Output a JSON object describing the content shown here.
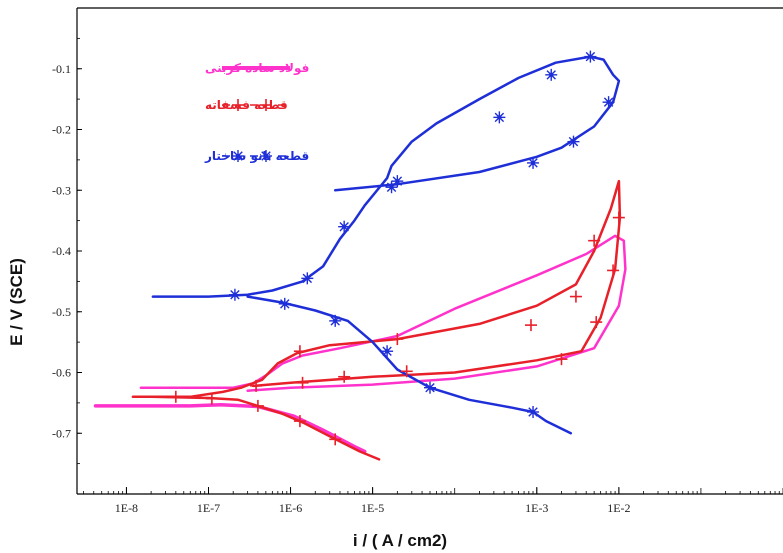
{
  "chart_data": {
    "type": "line",
    "title": "",
    "xlabel": "i / ( A / cm2)",
    "ylabel": "E / V (SCE)",
    "xscale": "log",
    "xlim": [
      2.5e-09,
      1.0
    ],
    "ylim": [
      -0.8,
      0.0
    ],
    "x_ticks": [
      {
        "value": 1e-08,
        "label": "1E-8"
      },
      {
        "value": 1e-07,
        "label": "1E-7"
      },
      {
        "value": 1e-06,
        "label": "1E-6"
      },
      {
        "value": 1e-05,
        "label": "1E-5"
      },
      {
        "value": 0.001,
        "label": "1E-3"
      },
      {
        "value": 0.01,
        "label": "1E-2"
      }
    ],
    "y_ticks": [
      -0.1,
      -0.2,
      -0.3,
      -0.4,
      -0.5,
      -0.6,
      -0.7
    ],
    "y_tick_labels": [
      "-0.1",
      "-0.2",
      "-0.3",
      "-0.4",
      "-0.5",
      "-0.6",
      "-0.7"
    ],
    "grid": false,
    "legend_position": "top-left",
    "series": [
      {
        "name": "فولاد ساده کربنی",
        "color": "#ff33cc",
        "marker": "none",
        "dash": "solid",
        "width": 3.5,
        "points": [
          [
            4.2e-09,
            -0.655
          ],
          [
            1.5e-08,
            -0.655
          ],
          [
            6e-08,
            -0.655
          ],
          [
            1.4e-07,
            -0.653
          ],
          [
            4e-07,
            -0.656
          ],
          [
            1.1e-06,
            -0.672
          ],
          [
            2.5e-06,
            -0.695
          ],
          [
            6e-06,
            -0.722
          ],
          [
            8e-06,
            -0.73
          ]
        ]
      },
      {
        "name": "فولاد ساده کربنی",
        "color": "#ff33cc",
        "marker": "none",
        "dash": "solid",
        "width": 2.5,
        "points": [
          [
            1.5e-08,
            -0.625
          ],
          [
            8e-08,
            -0.625
          ],
          [
            2e-07,
            -0.625
          ],
          [
            3.5e-07,
            -0.618
          ],
          [
            5e-07,
            -0.605
          ],
          [
            8e-07,
            -0.585
          ],
          [
            1.4e-06,
            -0.572
          ],
          [
            4e-06,
            -0.56
          ],
          [
            2e-05,
            -0.54
          ],
          [
            0.0001,
            -0.495
          ],
          [
            0.001,
            -0.44
          ],
          [
            0.004,
            -0.405
          ],
          [
            0.009,
            -0.375
          ],
          [
            0.0115,
            -0.383
          ],
          [
            0.012,
            -0.43
          ],
          [
            0.01,
            -0.49
          ],
          [
            0.005,
            -0.56
          ],
          [
            0.001,
            -0.59
          ],
          [
            0.0001,
            -0.61
          ],
          [
            1e-05,
            -0.62
          ],
          [
            1e-06,
            -0.625
          ],
          [
            3e-07,
            -0.63
          ]
        ]
      },
      {
        "name": "قطعه فسفاته",
        "color": "#e8202a",
        "marker": "plus",
        "dash": "solid",
        "width": 2.5,
        "points": [
          [
            2e-08,
            -0.64
          ],
          [
            1e-07,
            -0.642
          ],
          [
            2.3e-07,
            -0.645
          ],
          [
            4e-07,
            -0.655
          ],
          [
            8e-07,
            -0.668
          ],
          [
            1.5e-06,
            -0.684
          ],
          [
            3e-06,
            -0.705
          ],
          [
            7e-06,
            -0.73
          ],
          [
            1.2e-05,
            -0.743
          ]
        ]
      },
      {
        "name": "قطعه فسفاته",
        "color": "#e8202a",
        "marker": "plus",
        "dash": "solid",
        "width": 2.5,
        "points": [
          [
            1.2e-08,
            -0.64
          ],
          [
            6e-08,
            -0.64
          ],
          [
            1.5e-07,
            -0.632
          ],
          [
            2.5e-07,
            -0.625
          ],
          [
            4.5e-07,
            -0.612
          ],
          [
            7e-07,
            -0.585
          ],
          [
            1.2e-06,
            -0.568
          ],
          [
            3e-06,
            -0.555
          ],
          [
            2e-05,
            -0.545
          ],
          [
            0.0002,
            -0.52
          ],
          [
            0.001,
            -0.49
          ],
          [
            0.003,
            -0.455
          ],
          [
            0.005,
            -0.4
          ],
          [
            0.008,
            -0.33
          ],
          [
            0.01,
            -0.285
          ],
          [
            0.0103,
            -0.345
          ],
          [
            0.009,
            -0.43
          ],
          [
            0.006,
            -0.51
          ],
          [
            0.0035,
            -0.565
          ],
          [
            0.001,
            -0.58
          ],
          [
            0.0001,
            -0.6
          ],
          [
            1e-05,
            -0.607
          ],
          [
            1e-06,
            -0.617
          ],
          [
            3.5e-07,
            -0.622
          ]
        ]
      },
      {
        "name": "قطعه نانو ساختار",
        "color": "#1f2fd8",
        "marker": "star",
        "dash": "solid",
        "width": 2.5,
        "points": [
          [
            2.1e-08,
            -0.475
          ],
          [
            1e-07,
            -0.475
          ],
          [
            3e-07,
            -0.472
          ],
          [
            6e-07,
            -0.465
          ],
          [
            1.4e-06,
            -0.45
          ],
          [
            2.5e-06,
            -0.425
          ],
          [
            4e-06,
            -0.38
          ],
          [
            6e-06,
            -0.35
          ],
          [
            8e-06,
            -0.325
          ],
          [
            1.5e-05,
            -0.28
          ],
          [
            1.7e-05,
            -0.26
          ],
          [
            3e-05,
            -0.22
          ],
          [
            6e-05,
            -0.19
          ],
          [
            0.0002,
            -0.15
          ],
          [
            0.0006,
            -0.115
          ],
          [
            0.0017,
            -0.09
          ],
          [
            0.0045,
            -0.08
          ],
          [
            0.0065,
            -0.085
          ],
          [
            0.0085,
            -0.11
          ],
          [
            0.01,
            -0.12
          ],
          [
            0.0085,
            -0.155
          ],
          [
            0.005,
            -0.195
          ],
          [
            0.002,
            -0.23
          ],
          [
            0.001,
            -0.245
          ],
          [
            0.0002,
            -0.27
          ],
          [
            2e-05,
            -0.29
          ],
          [
            3.5e-06,
            -0.3
          ]
        ]
      },
      {
        "name": "قطعه نانو ساختار",
        "color": "#1f2fd8",
        "marker": "star",
        "dash": "solid",
        "width": 2.5,
        "points": [
          [
            3e-07,
            -0.475
          ],
          [
            8e-07,
            -0.485
          ],
          [
            2e-06,
            -0.498
          ],
          [
            5e-06,
            -0.515
          ],
          [
            1e-05,
            -0.55
          ],
          [
            2e-05,
            -0.595
          ],
          [
            5e-05,
            -0.625
          ],
          [
            0.00015,
            -0.645
          ],
          [
            0.0005,
            -0.658
          ],
          [
            0.0009,
            -0.665
          ],
          [
            0.0013,
            -0.68
          ],
          [
            0.0026,
            -0.7
          ]
        ]
      }
    ],
    "marker_points": {
      "plus": [
        [
          4e-08,
          -0.64
        ],
        [
          1.1e-07,
          -0.643
        ],
        [
          4e-07,
          -0.655
        ],
        [
          1.3e-06,
          -0.68
        ],
        [
          3.5e-06,
          -0.71
        ],
        [
          3.8e-07,
          -0.622
        ],
        [
          1.3e-06,
          -0.565
        ],
        [
          2e-05,
          -0.545
        ],
        [
          0.00085,
          -0.522
        ],
        [
          0.003,
          -0.475
        ],
        [
          0.005,
          -0.383
        ],
        [
          0.01,
          -0.345
        ],
        [
          0.0085,
          -0.432
        ],
        [
          0.0053,
          -0.517
        ],
        [
          0.002,
          -0.578
        ],
        [
          2.6e-05,
          -0.598
        ],
        [
          4.5e-06,
          -0.607
        ],
        [
          1.4e-06,
          -0.617
        ]
      ],
      "star": [
        [
          2.1e-07,
          -0.472
        ],
        [
          1.6e-06,
          -0.445
        ],
        [
          4.5e-06,
          -0.36
        ],
        [
          1.7e-05,
          -0.295
        ],
        [
          0.00035,
          -0.18
        ],
        [
          0.0015,
          -0.11
        ],
        [
          0.0045,
          -0.08
        ],
        [
          0.0075,
          -0.155
        ],
        [
          0.0028,
          -0.22
        ],
        [
          0.0009,
          -0.255
        ],
        [
          2e-05,
          -0.285
        ],
        [
          8.5e-07,
          -0.487
        ],
        [
          3.5e-06,
          -0.515
        ],
        [
          1.5e-05,
          -0.565
        ],
        [
          5e-05,
          -0.625
        ],
        [
          0.0009,
          -0.665
        ]
      ]
    },
    "legend": [
      {
        "label": "فولاد ساده کربنی",
        "color": "#ff33cc",
        "style": "line"
      },
      {
        "label": "قطعه فسفاته",
        "color": "#e8202a",
        "style": "plus"
      },
      {
        "label": "قطعه نانو ساختار",
        "color": "#1f2fd8",
        "style": "star"
      }
    ]
  }
}
